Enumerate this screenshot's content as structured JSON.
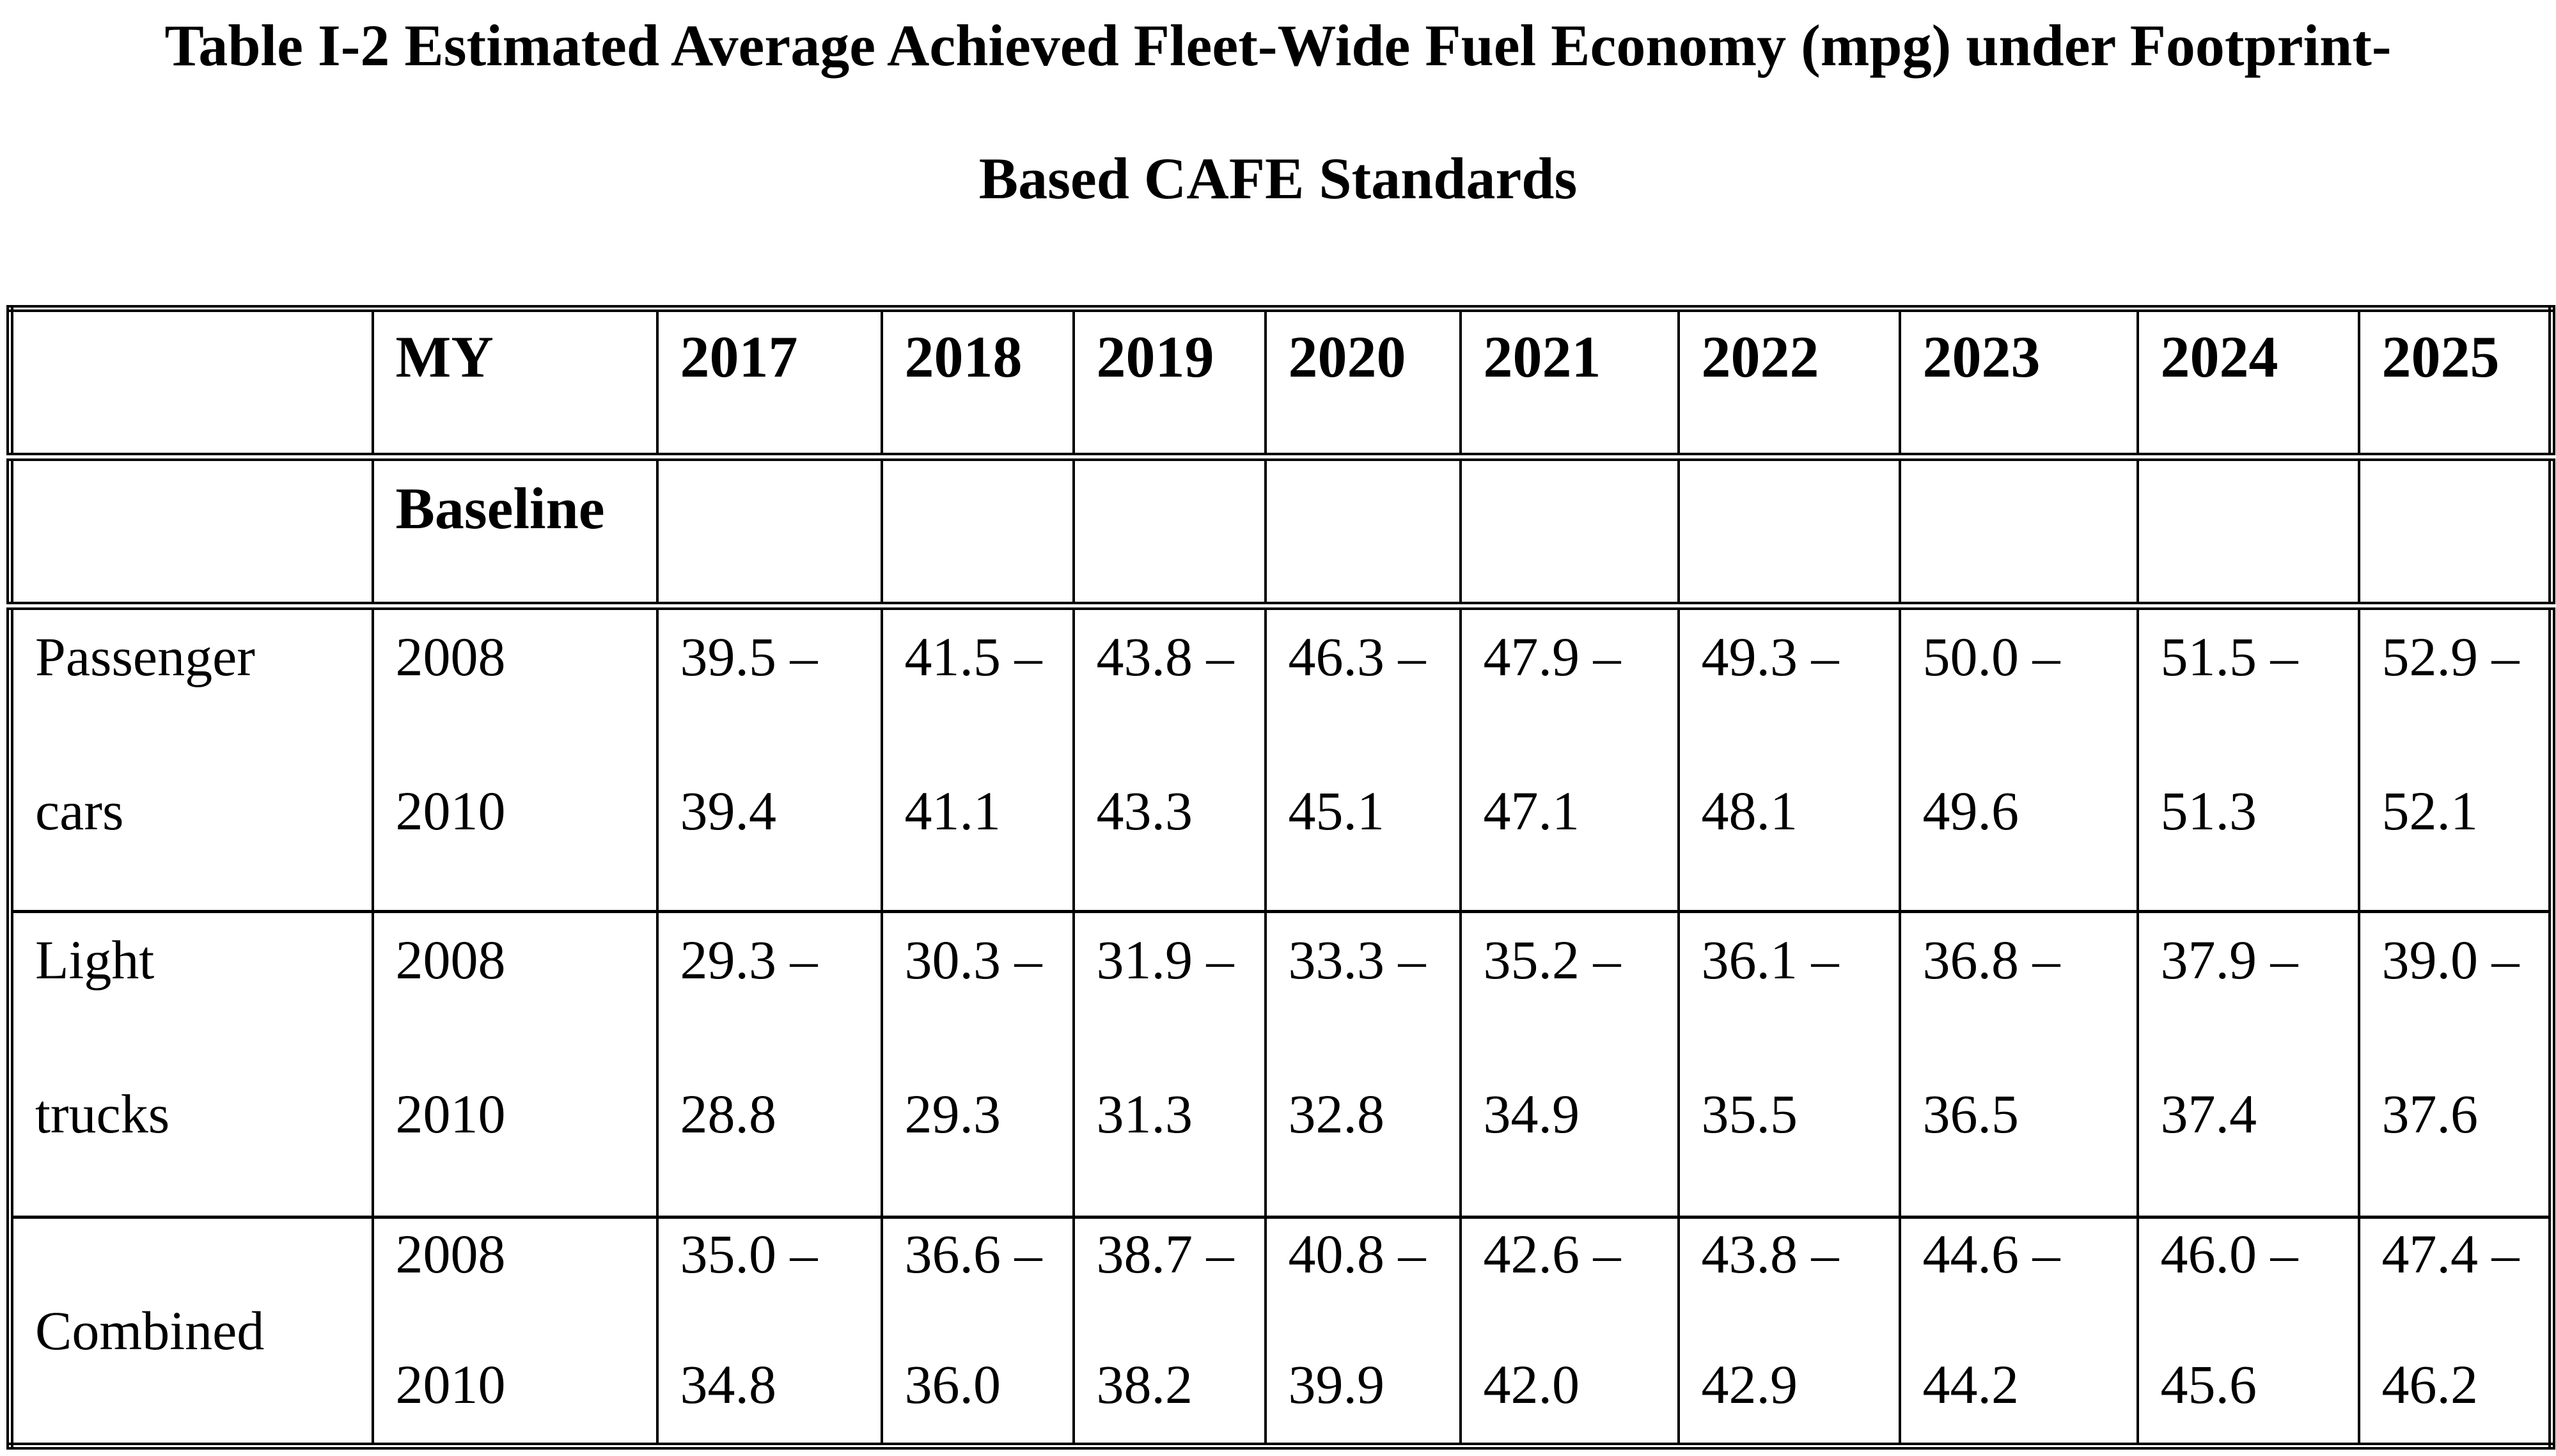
{
  "colors": {
    "text": "#000000",
    "background": "#ffffff"
  },
  "title": {
    "line1": "Table I-2 Estimated Average Achieved Fleet-Wide Fuel Economy (mpg) under Footprint-",
    "line2": "Based CAFE Standards"
  },
  "table": {
    "header": {
      "corner": "",
      "my_label": "MY",
      "years": [
        "2017",
        "2018",
        "2019",
        "2020",
        "2021",
        "2022",
        "2023",
        "2024",
        "2025"
      ]
    },
    "subheader": {
      "baseline_label": "Baseline"
    },
    "rows": [
      {
        "label": [
          "Passenger",
          "cars"
        ],
        "baseline": [
          "2008",
          "2010"
        ],
        "values": [
          [
            "39.5 –",
            "39.4"
          ],
          [
            "41.5 –",
            "41.1"
          ],
          [
            "43.8 –",
            "43.3"
          ],
          [
            "46.3 –",
            "45.1"
          ],
          [
            "47.9 –",
            "47.1"
          ],
          [
            "49.3 –",
            "48.1"
          ],
          [
            "50.0 –",
            "49.6"
          ],
          [
            "51.5 –",
            "51.3"
          ],
          [
            "52.9 –",
            "52.1"
          ]
        ]
      },
      {
        "label": [
          "Light",
          "trucks"
        ],
        "baseline": [
          "2008",
          "2010"
        ],
        "values": [
          [
            "29.3 –",
            "28.8"
          ],
          [
            "30.3 –",
            "29.3"
          ],
          [
            "31.9 –",
            "31.3"
          ],
          [
            "33.3 –",
            "32.8"
          ],
          [
            "35.2 –",
            "34.9"
          ],
          [
            "36.1 –",
            "35.5"
          ],
          [
            "36.8 –",
            "36.5"
          ],
          [
            "37.9 –",
            "37.4"
          ],
          [
            "39.0 –",
            "37.6"
          ]
        ]
      },
      {
        "label": [
          "Combined"
        ],
        "baseline": [
          "2008",
          "2010"
        ],
        "values": [
          [
            "35.0 –",
            "34.8"
          ],
          [
            "36.6 –",
            "36.0"
          ],
          [
            "38.7 –",
            "38.2"
          ],
          [
            "40.8 –",
            "39.9"
          ],
          [
            "42.6 –",
            "42.0"
          ],
          [
            "43.8 –",
            "42.9"
          ],
          [
            "44.6 –",
            "44.2"
          ],
          [
            "46.0 –",
            "45.6"
          ],
          [
            "47.4 –",
            "46.2"
          ]
        ]
      }
    ]
  }
}
